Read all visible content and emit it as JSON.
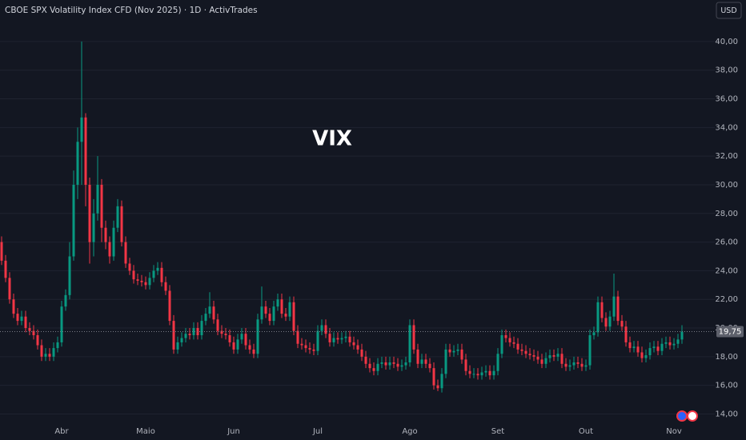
{
  "chart_data": {
    "type": "candlestick",
    "title": "CBOE SPX Volatility Index CFD (Nov 2025) · 1D · ActivTrades",
    "watermark": "VIX",
    "currency": "USD",
    "last_price_label": "19,75",
    "up_color": "#089981",
    "down_color": "#f23645",
    "grid": true,
    "ylim": [
      13.3,
      42.9
    ],
    "yticks": [
      {
        "value": 14,
        "label": "14,00"
      },
      {
        "value": 16,
        "label": "16,00"
      },
      {
        "value": 18,
        "label": "18,00"
      },
      {
        "value": 20,
        "label": "20,00"
      },
      {
        "value": 22,
        "label": "22,00"
      },
      {
        "value": 24,
        "label": "24,00"
      },
      {
        "value": 26,
        "label": "26,00"
      },
      {
        "value": 28,
        "label": "28,00"
      },
      {
        "value": 30,
        "label": "30,00"
      },
      {
        "value": 32,
        "label": "32,00"
      },
      {
        "value": 34,
        "label": "34,00"
      },
      {
        "value": 36,
        "label": "36,00"
      },
      {
        "value": 38,
        "label": "38,00"
      },
      {
        "value": 40,
        "label": "40,00"
      }
    ],
    "categories": [
      null,
      null,
      null,
      null,
      null,
      null,
      null,
      null,
      null,
      null,
      null,
      null,
      null,
      null,
      null,
      "Abr",
      null,
      null,
      null,
      null,
      null,
      null,
      null,
      null,
      null,
      null,
      null,
      null,
      null,
      null,
      null,
      null,
      null,
      null,
      null,
      null,
      "Maio",
      null,
      null,
      null,
      null,
      null,
      null,
      null,
      null,
      null,
      null,
      null,
      null,
      null,
      null,
      null,
      null,
      null,
      null,
      null,
      null,
      null,
      "Jun",
      null,
      null,
      null,
      null,
      null,
      null,
      null,
      null,
      null,
      null,
      null,
      null,
      null,
      null,
      null,
      null,
      null,
      null,
      null,
      null,
      "Jul",
      null,
      null,
      null,
      null,
      null,
      null,
      null,
      null,
      null,
      null,
      null,
      null,
      null,
      null,
      null,
      null,
      null,
      null,
      null,
      null,
      null,
      null,
      "Ago",
      null,
      null,
      null,
      null,
      null,
      null,
      null,
      null,
      null,
      null,
      null,
      null,
      null,
      null,
      null,
      null,
      null,
      null,
      null,
      null,
      null,
      "Set",
      null,
      null,
      null,
      null,
      null,
      null,
      null,
      null,
      null,
      null,
      null,
      null,
      null,
      null,
      null,
      null,
      null,
      null,
      null,
      null,
      null,
      "Out",
      null,
      null,
      null,
      null,
      null,
      null,
      null,
      null,
      null,
      null,
      null,
      null,
      null,
      null,
      null,
      null,
      null,
      null,
      null,
      null,
      null,
      "Nov",
      null,
      null
    ],
    "open": [
      26.0,
      24.7,
      23.5,
      22.0,
      21.0,
      20.5,
      20.8,
      20.0,
      19.8,
      19.5,
      18.8,
      18.0,
      18.2,
      18.0,
      18.6,
      19.0,
      21.5,
      22.3,
      25.0,
      30.0,
      33.0,
      34.7,
      30.0,
      26.0,
      28.0,
      30.0,
      27.0,
      26.0,
      25.0,
      27.0,
      28.5,
      26.0,
      24.5,
      24.0,
      23.4,
      23.3,
      23.2,
      23.0,
      23.5,
      24.0,
      24.2,
      23.2,
      22.6,
      20.5,
      18.5,
      19.0,
      19.3,
      19.6,
      19.5,
      20.0,
      19.5,
      20.5,
      21.0,
      21.5,
      20.6,
      19.8,
      19.6,
      19.5,
      19.0,
      18.5,
      19.2,
      19.6,
      18.8,
      18.5,
      18.2,
      20.6,
      21.5,
      21.0,
      20.5,
      21.5,
      22.0,
      21.0,
      20.8,
      21.8,
      19.8,
      18.9,
      18.8,
      18.6,
      18.5,
      18.4,
      19.8,
      20.2,
      19.6,
      19.0,
      19.3,
      19.2,
      19.3,
      19.4,
      19.0,
      18.8,
      18.5,
      18.0,
      17.5,
      17.2,
      17.0,
      17.5,
      17.6,
      17.4,
      17.6,
      17.5,
      17.3,
      17.4,
      17.6,
      20.2,
      18.5,
      17.5,
      17.8,
      17.5,
      17.2,
      16.0,
      15.8,
      16.8,
      18.5,
      18.3,
      18.4,
      18.5,
      17.8,
      17.0,
      16.8,
      16.8,
      16.7,
      16.9,
      17.0,
      16.7,
      17.0,
      18.2,
      19.5,
      19.3,
      19.0,
      18.9,
      18.5,
      18.4,
      18.2,
      18.1,
      18.0,
      17.8,
      17.5,
      17.9,
      18.1,
      18.0,
      18.2,
      17.5,
      17.3,
      17.4,
      17.6,
      17.5,
      17.3,
      17.4,
      19.5,
      19.7,
      21.8,
      20.7,
      20.1,
      20.8,
      22.2,
      20.5,
      20.1,
      19.0,
      18.6,
      18.7,
      18.3,
      17.9,
      18.1,
      18.6,
      18.7,
      18.4,
      18.9,
      19.0,
      18.8,
      18.9,
      19.2
    ],
    "high": [
      26.4,
      25.1,
      23.9,
      22.4,
      21.4,
      21.2,
      21.2,
      20.4,
      20.2,
      19.9,
      19.2,
      18.6,
      18.6,
      19.0,
      19.4,
      21.9,
      22.7,
      26.0,
      31.0,
      34.0,
      40.0,
      35.0,
      30.5,
      29.0,
      32.0,
      30.4,
      27.5,
      26.4,
      27.5,
      29.0,
      28.9,
      26.4,
      24.9,
      24.4,
      23.8,
      23.7,
      23.6,
      23.9,
      24.4,
      24.6,
      24.6,
      23.6,
      23.0,
      20.9,
      19.4,
      19.7,
      20.0,
      20.0,
      20.4,
      20.4,
      20.9,
      21.4,
      22.5,
      21.9,
      21.0,
      20.2,
      20.0,
      19.9,
      19.4,
      19.6,
      20.0,
      20.0,
      19.2,
      18.9,
      21.0,
      22.9,
      21.9,
      21.4,
      21.9,
      22.4,
      22.4,
      21.4,
      22.2,
      22.2,
      20.2,
      19.3,
      19.2,
      19.0,
      18.9,
      20.2,
      20.6,
      20.6,
      20.0,
      19.7,
      19.7,
      19.7,
      19.8,
      19.8,
      19.4,
      19.2,
      18.9,
      18.4,
      17.9,
      17.6,
      17.9,
      18.0,
      18.0,
      18.0,
      18.0,
      17.9,
      17.8,
      18.0,
      20.6,
      20.6,
      18.9,
      18.2,
      18.2,
      17.9,
      17.6,
      16.4,
      17.2,
      18.9,
      18.9,
      18.8,
      18.9,
      18.9,
      18.2,
      17.4,
      17.2,
      17.2,
      17.3,
      17.4,
      17.4,
      17.4,
      18.6,
      19.9,
      19.9,
      19.7,
      19.4,
      19.3,
      18.9,
      18.8,
      18.6,
      18.5,
      18.4,
      18.2,
      18.3,
      18.5,
      18.5,
      18.6,
      18.6,
      17.9,
      17.8,
      18.0,
      18.0,
      17.9,
      17.8,
      19.9,
      20.1,
      22.2,
      22.2,
      21.1,
      21.2,
      23.8,
      22.6,
      20.9,
      20.5,
      19.4,
      19.1,
      19.1,
      18.7,
      18.5,
      19.0,
      19.1,
      19.1,
      19.3,
      19.4,
      19.4,
      19.3,
      19.6,
      20.2
    ],
    "low": [
      24.4,
      23.2,
      21.7,
      20.7,
      20.2,
      20.2,
      19.7,
      19.5,
      19.2,
      18.5,
      17.7,
      17.7,
      17.7,
      17.7,
      18.3,
      18.7,
      21.2,
      22.0,
      24.7,
      29.0,
      30.0,
      28.5,
      24.5,
      25.0,
      27.5,
      26.0,
      25.5,
      24.5,
      24.7,
      26.7,
      25.7,
      24.2,
      23.7,
      23.1,
      23.0,
      22.9,
      22.7,
      22.7,
      23.2,
      23.7,
      22.9,
      22.3,
      20.2,
      18.2,
      18.2,
      18.7,
      19.0,
      19.2,
      19.2,
      19.2,
      19.2,
      20.2,
      20.7,
      20.3,
      19.5,
      19.3,
      19.2,
      18.7,
      18.2,
      18.2,
      18.9,
      18.5,
      18.2,
      17.9,
      17.9,
      20.3,
      20.7,
      20.2,
      20.2,
      21.2,
      20.7,
      20.5,
      20.5,
      19.5,
      18.6,
      18.5,
      18.3,
      18.2,
      18.1,
      18.1,
      19.5,
      19.3,
      18.7,
      18.7,
      18.9,
      18.9,
      19.0,
      18.7,
      18.5,
      18.2,
      17.7,
      17.2,
      16.9,
      16.7,
      16.7,
      17.2,
      17.1,
      17.1,
      17.2,
      17.0,
      17.0,
      17.1,
      17.3,
      18.2,
      17.2,
      17.2,
      17.2,
      16.9,
      15.7,
      15.6,
      15.5,
      16.5,
      18.0,
      18.0,
      18.1,
      17.5,
      16.7,
      16.5,
      16.5,
      16.4,
      16.4,
      16.6,
      16.4,
      16.4,
      16.7,
      17.9,
      19.0,
      18.7,
      18.6,
      18.2,
      18.1,
      17.9,
      17.8,
      17.7,
      17.5,
      17.2,
      17.2,
      17.6,
      17.7,
      17.7,
      17.2,
      17.0,
      17.0,
      17.1,
      17.2,
      17.0,
      17.0,
      17.1,
      19.2,
      19.4,
      20.4,
      19.8,
      19.8,
      20.5,
      20.2,
      19.8,
      18.7,
      18.3,
      18.3,
      18.0,
      17.6,
      17.6,
      17.8,
      18.3,
      18.1,
      18.1,
      18.6,
      18.5,
      18.5,
      18.6,
      18.9
    ],
    "close": [
      24.7,
      23.5,
      22.0,
      21.0,
      20.5,
      20.8,
      20.0,
      19.8,
      19.5,
      18.8,
      18.0,
      18.2,
      18.0,
      18.6,
      19.0,
      21.5,
      22.3,
      25.0,
      30.0,
      33.0,
      34.7,
      30.0,
      26.0,
      28.0,
      30.0,
      27.0,
      26.0,
      25.0,
      27.0,
      28.5,
      26.0,
      24.5,
      24.0,
      23.4,
      23.3,
      23.2,
      23.0,
      23.5,
      24.0,
      24.2,
      23.2,
      22.6,
      20.5,
      18.5,
      19.0,
      19.3,
      19.6,
      19.5,
      20.0,
      19.5,
      20.5,
      21.0,
      21.5,
      20.6,
      19.8,
      19.6,
      19.5,
      19.0,
      18.5,
      19.2,
      19.6,
      18.8,
      18.5,
      18.2,
      20.6,
      21.5,
      21.0,
      20.5,
      21.5,
      22.0,
      21.0,
      20.8,
      21.8,
      19.8,
      18.9,
      18.8,
      18.6,
      18.5,
      18.4,
      19.8,
      20.2,
      19.6,
      19.0,
      19.3,
      19.2,
      19.3,
      19.4,
      19.0,
      18.8,
      18.5,
      18.0,
      17.5,
      17.2,
      17.0,
      17.5,
      17.6,
      17.4,
      17.6,
      17.5,
      17.3,
      17.4,
      17.6,
      20.2,
      18.5,
      17.5,
      17.8,
      17.5,
      17.2,
      16.0,
      15.8,
      16.8,
      18.5,
      18.3,
      18.4,
      18.5,
      17.8,
      17.0,
      16.8,
      16.8,
      16.7,
      16.9,
      17.0,
      16.7,
      17.0,
      18.2,
      19.5,
      19.3,
      19.0,
      18.9,
      18.5,
      18.4,
      18.2,
      18.1,
      18.0,
      17.8,
      17.5,
      17.9,
      18.1,
      18.0,
      18.2,
      17.5,
      17.3,
      17.4,
      17.6,
      17.5,
      17.3,
      17.4,
      19.5,
      19.7,
      21.8,
      20.7,
      20.1,
      20.8,
      22.2,
      20.5,
      20.1,
      19.0,
      18.6,
      18.7,
      18.3,
      17.9,
      18.1,
      18.6,
      18.7,
      18.4,
      18.9,
      19.0,
      18.8,
      18.9,
      19.2,
      19.75
    ]
  }
}
